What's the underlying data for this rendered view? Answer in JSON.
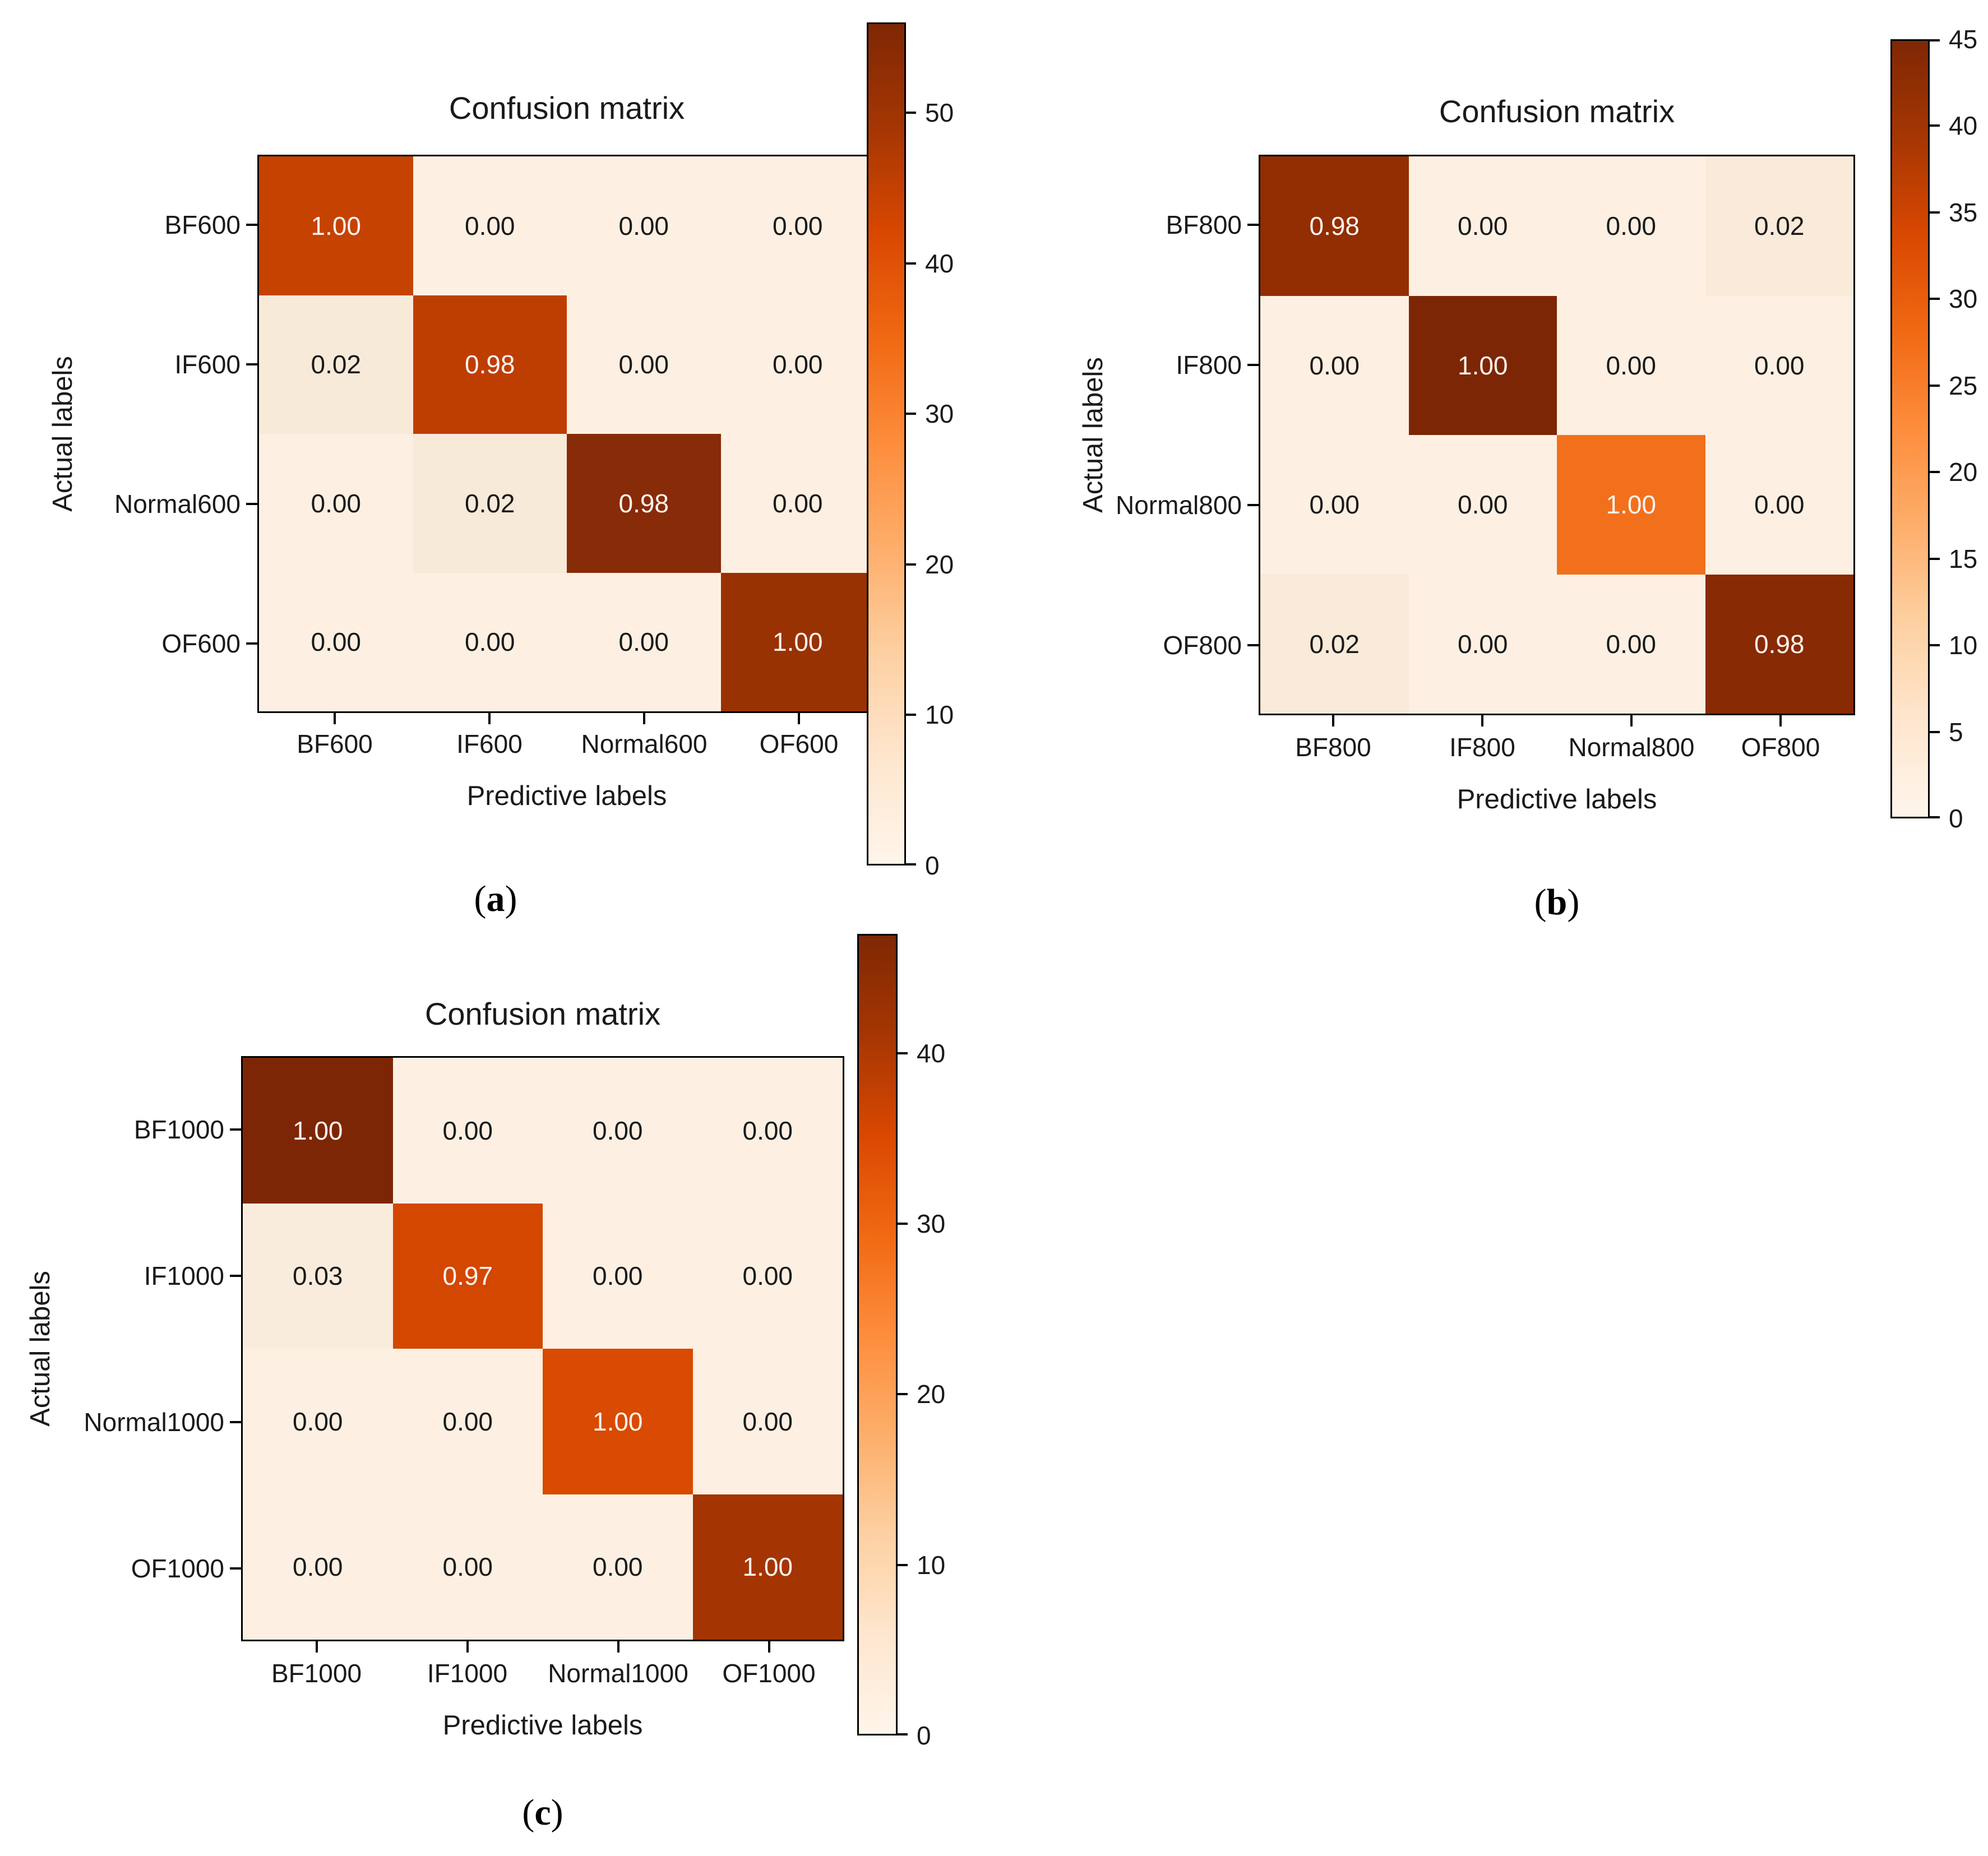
{
  "colormap_stops": [
    "#fff5eb",
    "#fee6ce",
    "#fdd0a2",
    "#fdae6b",
    "#fd8d3c",
    "#f16913",
    "#d94801",
    "#a63603",
    "#7f2704"
  ],
  "chart_data": [
    {
      "type": "heatmap",
      "title": "Confusion matrix",
      "xlabel": "Predictive labels",
      "ylabel": "Actual labels",
      "caption": {
        "open": "(",
        "letter": "a",
        "close": ")"
      },
      "x_categories": [
        "BF600",
        "IF600",
        "Normal600",
        "OF600"
      ],
      "y_categories": [
        "BF600",
        "IF600",
        "Normal600",
        "OF600"
      ],
      "values": [
        [
          1.0,
          0.0,
          0.0,
          0.0
        ],
        [
          0.02,
          0.98,
          0.0,
          0.0
        ],
        [
          0.0,
          0.02,
          0.98,
          0.0
        ],
        [
          0.0,
          0.0,
          0.0,
          1.0
        ]
      ],
      "cell_colors": [
        [
          "#c64201",
          "#fdf0e2",
          "#fdf0e2",
          "#fdf0e2"
        ],
        [
          "#f8ead8",
          "#be3e01",
          "#fdf0e2",
          "#fdf0e2"
        ],
        [
          "#fdf0e2",
          "#f8ead8",
          "#872b09",
          "#fdf0e2"
        ],
        [
          "#fdf0e2",
          "#fdf0e2",
          "#fdf0e2",
          "#993203"
        ]
      ],
      "colorbar": {
        "colormap": "Oranges",
        "vmin": 0,
        "vmax": 56,
        "ticks": [
          0,
          10,
          20,
          30,
          40,
          50
        ]
      },
      "legend_position": "right-colorbar",
      "grid": false
    },
    {
      "type": "heatmap",
      "title": "Confusion matrix",
      "xlabel": "Predictive labels",
      "ylabel": "Actual labels",
      "caption": {
        "open": "(",
        "letter": "b",
        "close": ")"
      },
      "x_categories": [
        "BF800",
        "IF800",
        "Normal800",
        "OF800"
      ],
      "y_categories": [
        "BF800",
        "IF800",
        "Normal800",
        "OF800"
      ],
      "values": [
        [
          0.98,
          0.0,
          0.0,
          0.02
        ],
        [
          0.0,
          1.0,
          0.0,
          0.0
        ],
        [
          0.0,
          0.0,
          1.0,
          0.0
        ],
        [
          0.02,
          0.0,
          0.0,
          0.98
        ]
      ],
      "cell_colors": [
        [
          "#932d02",
          "#fdf0e2",
          "#fdf0e2",
          "#f9ead9"
        ],
        [
          "#fdf0e2",
          "#7d2605",
          "#fdf0e2",
          "#fdf0e2"
        ],
        [
          "#fdf0e2",
          "#fdf0e2",
          "#f2701c",
          "#fdf0e2"
        ],
        [
          "#f9ead9",
          "#fdf0e2",
          "#fdf0e2",
          "#882a04"
        ]
      ],
      "colorbar": {
        "colormap": "Oranges",
        "vmin": 0,
        "vmax": 45,
        "ticks": [
          0,
          5,
          10,
          15,
          20,
          25,
          30,
          35,
          40,
          45
        ]
      },
      "legend_position": "right-colorbar",
      "grid": false
    },
    {
      "type": "heatmap",
      "title": "Confusion matrix",
      "xlabel": "Predictive labels",
      "ylabel": "Actual labels",
      "caption": {
        "open": "(",
        "letter": "c",
        "close": ")"
      },
      "x_categories": [
        "BF1000",
        "IF1000",
        "Normal1000",
        "OF1000"
      ],
      "y_categories": [
        "BF1000",
        "IF1000",
        "Normal1000",
        "OF1000"
      ],
      "values": [
        [
          1.0,
          0.0,
          0.0,
          0.0
        ],
        [
          0.03,
          0.97,
          0.0,
          0.0
        ],
        [
          0.0,
          0.0,
          1.0,
          0.0
        ],
        [
          0.0,
          0.0,
          0.0,
          1.0
        ]
      ],
      "cell_colors": [
        [
          "#7d2605",
          "#fdf0e2",
          "#fdf0e2",
          "#fdf0e2"
        ],
        [
          "#faecdc",
          "#d34701",
          "#fdf0e2",
          "#fdf0e2"
        ],
        [
          "#fdf0e2",
          "#fdf0e2",
          "#d94a02",
          "#fdf0e2"
        ],
        [
          "#fdf0e2",
          "#fdf0e2",
          "#fdf0e2",
          "#a43503"
        ]
      ],
      "colorbar": {
        "colormap": "Oranges",
        "vmin": 0,
        "vmax": 47,
        "ticks": [
          0,
          10,
          20,
          30,
          40
        ]
      },
      "legend_position": "right-colorbar",
      "grid": false
    }
  ]
}
